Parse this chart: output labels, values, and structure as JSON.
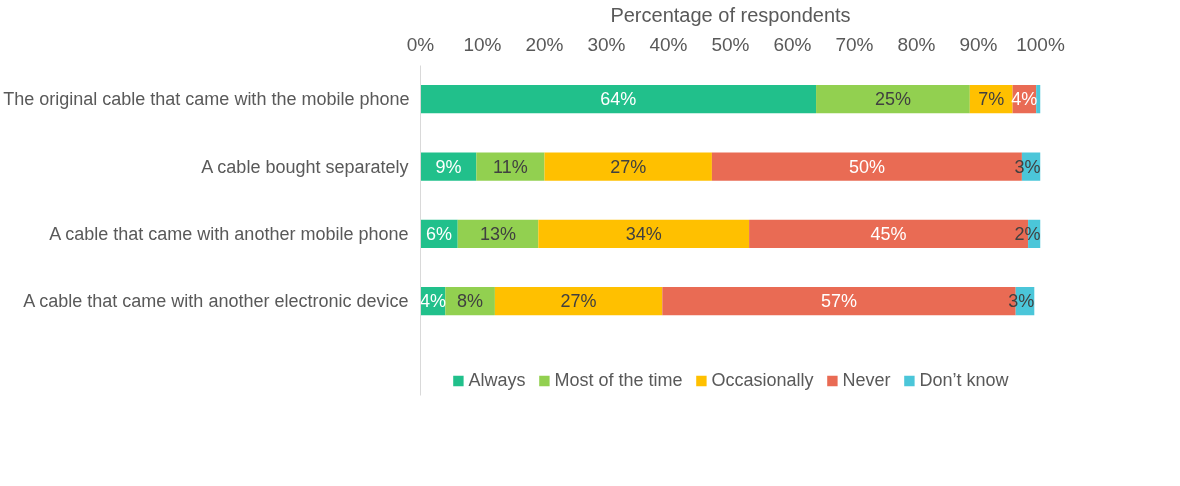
{
  "chart_data": {
    "type": "bar",
    "orientation": "horizontal",
    "stacked": true,
    "xlabel": "Percentage of respondents",
    "categories": [
      "The original cable that came with the mobile phone",
      "A cable bought separately",
      "A cable that came with another mobile phone",
      "A cable that came with another electronic device"
    ],
    "series": [
      {
        "name": "Always",
        "color": "#21c08b",
        "values": [
          63.8,
          9,
          6,
          4
        ],
        "value_labels": [
          "64%",
          "9%",
          "6%",
          "4%"
        ]
      },
      {
        "name": "Most of the time",
        "color": "#92d050",
        "values": [
          24.8,
          11,
          13,
          8
        ],
        "value_labels": [
          "25%",
          "11%",
          "13%",
          "8%"
        ]
      },
      {
        "name": "Occasionally",
        "color": "#ffc000",
        "values": [
          6.9,
          27,
          34,
          27
        ],
        "value_labels": [
          "7%",
          "27%",
          "34%",
          "27%"
        ]
      },
      {
        "name": "Never",
        "color": "#e96b54",
        "values": [
          3.8,
          50,
          45,
          57
        ],
        "value_labels": [
          "4%",
          "50%",
          "45%",
          "57%"
        ]
      },
      {
        "name": "Don’t know",
        "color": "#4bc6d9",
        "values": [
          0.7,
          3,
          2,
          3
        ],
        "value_labels": [
          null,
          "3%",
          "2%",
          "3%"
        ]
      }
    ],
    "xlim": [
      0,
      100
    ],
    "xticks": [
      {
        "value": 0,
        "label": "0%"
      },
      {
        "value": 10,
        "label": "10%"
      },
      {
        "value": 20,
        "label": "20%"
      },
      {
        "value": 30,
        "label": "30%"
      },
      {
        "value": 40,
        "label": "40%"
      },
      {
        "value": 50,
        "label": "50%"
      },
      {
        "value": 60,
        "label": "60%"
      },
      {
        "value": 70,
        "label": "70%"
      },
      {
        "value": 80,
        "label": "80%"
      },
      {
        "value": 90,
        "label": "90%"
      },
      {
        "value": 100,
        "label": "100%"
      }
    ],
    "grid": false,
    "legend": "bottom"
  }
}
